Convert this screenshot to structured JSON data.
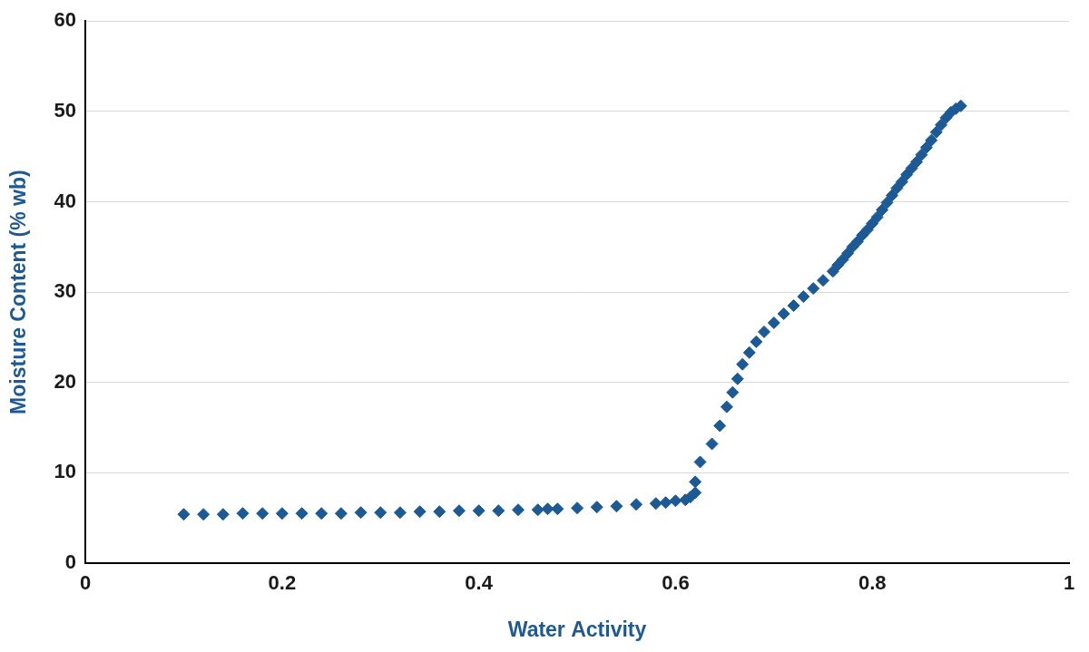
{
  "chart_data": {
    "type": "scatter",
    "x_label": "Water Activity",
    "y_label": "Moisture Content (% wb)",
    "x": [
      0.1,
      0.12,
      0.14,
      0.16,
      0.18,
      0.2,
      0.22,
      0.24,
      0.26,
      0.28,
      0.3,
      0.32,
      0.34,
      0.36,
      0.38,
      0.4,
      0.42,
      0.44,
      0.46,
      0.47,
      0.48,
      0.5,
      0.52,
      0.54,
      0.56,
      0.58,
      0.59,
      0.6,
      0.61,
      0.615,
      0.62,
      0.62,
      0.625,
      0.637,
      0.645,
      0.652,
      0.658,
      0.663,
      0.668,
      0.675,
      0.682,
      0.69,
      0.7,
      0.71,
      0.72,
      0.73,
      0.74,
      0.75,
      0.76,
      0.765,
      0.77,
      0.775,
      0.78,
      0.785,
      0.79,
      0.795,
      0.8,
      0.805,
      0.81,
      0.815,
      0.82,
      0.825,
      0.83,
      0.835,
      0.84,
      0.845,
      0.85,
      0.855,
      0.86,
      0.865,
      0.87,
      0.875,
      0.88,
      0.885,
      0.89
    ],
    "values": [
      5.4,
      5.4,
      5.4,
      5.5,
      5.5,
      5.5,
      5.5,
      5.5,
      5.5,
      5.6,
      5.6,
      5.6,
      5.7,
      5.7,
      5.8,
      5.8,
      5.8,
      5.9,
      5.9,
      6.0,
      6.0,
      6.1,
      6.2,
      6.3,
      6.5,
      6.6,
      6.7,
      6.9,
      7.0,
      7.3,
      7.8,
      9.0,
      11.2,
      13.2,
      15.2,
      17.3,
      18.9,
      20.4,
      22.0,
      23.3,
      24.5,
      25.6,
      26.6,
      27.6,
      28.5,
      29.5,
      30.4,
      31.3,
      32.3,
      33.0,
      33.6,
      34.3,
      35.0,
      35.6,
      36.3,
      36.9,
      37.6,
      38.3,
      39.1,
      39.9,
      40.7,
      41.5,
      42.2,
      43.0,
      43.7,
      44.4,
      45.2,
      46.0,
      46.8,
      47.7,
      48.5,
      49.3,
      49.9,
      50.3,
      50.6
    ],
    "color": "#1c5a96",
    "marker": "diamond",
    "xlim": [
      0,
      1
    ],
    "xticks": [
      0,
      0.2,
      0.4,
      0.6,
      0.8,
      1
    ],
    "ylim": [
      0,
      60
    ],
    "yticks": [
      0,
      10,
      20,
      30,
      40,
      50,
      60
    ],
    "grid": "y"
  }
}
